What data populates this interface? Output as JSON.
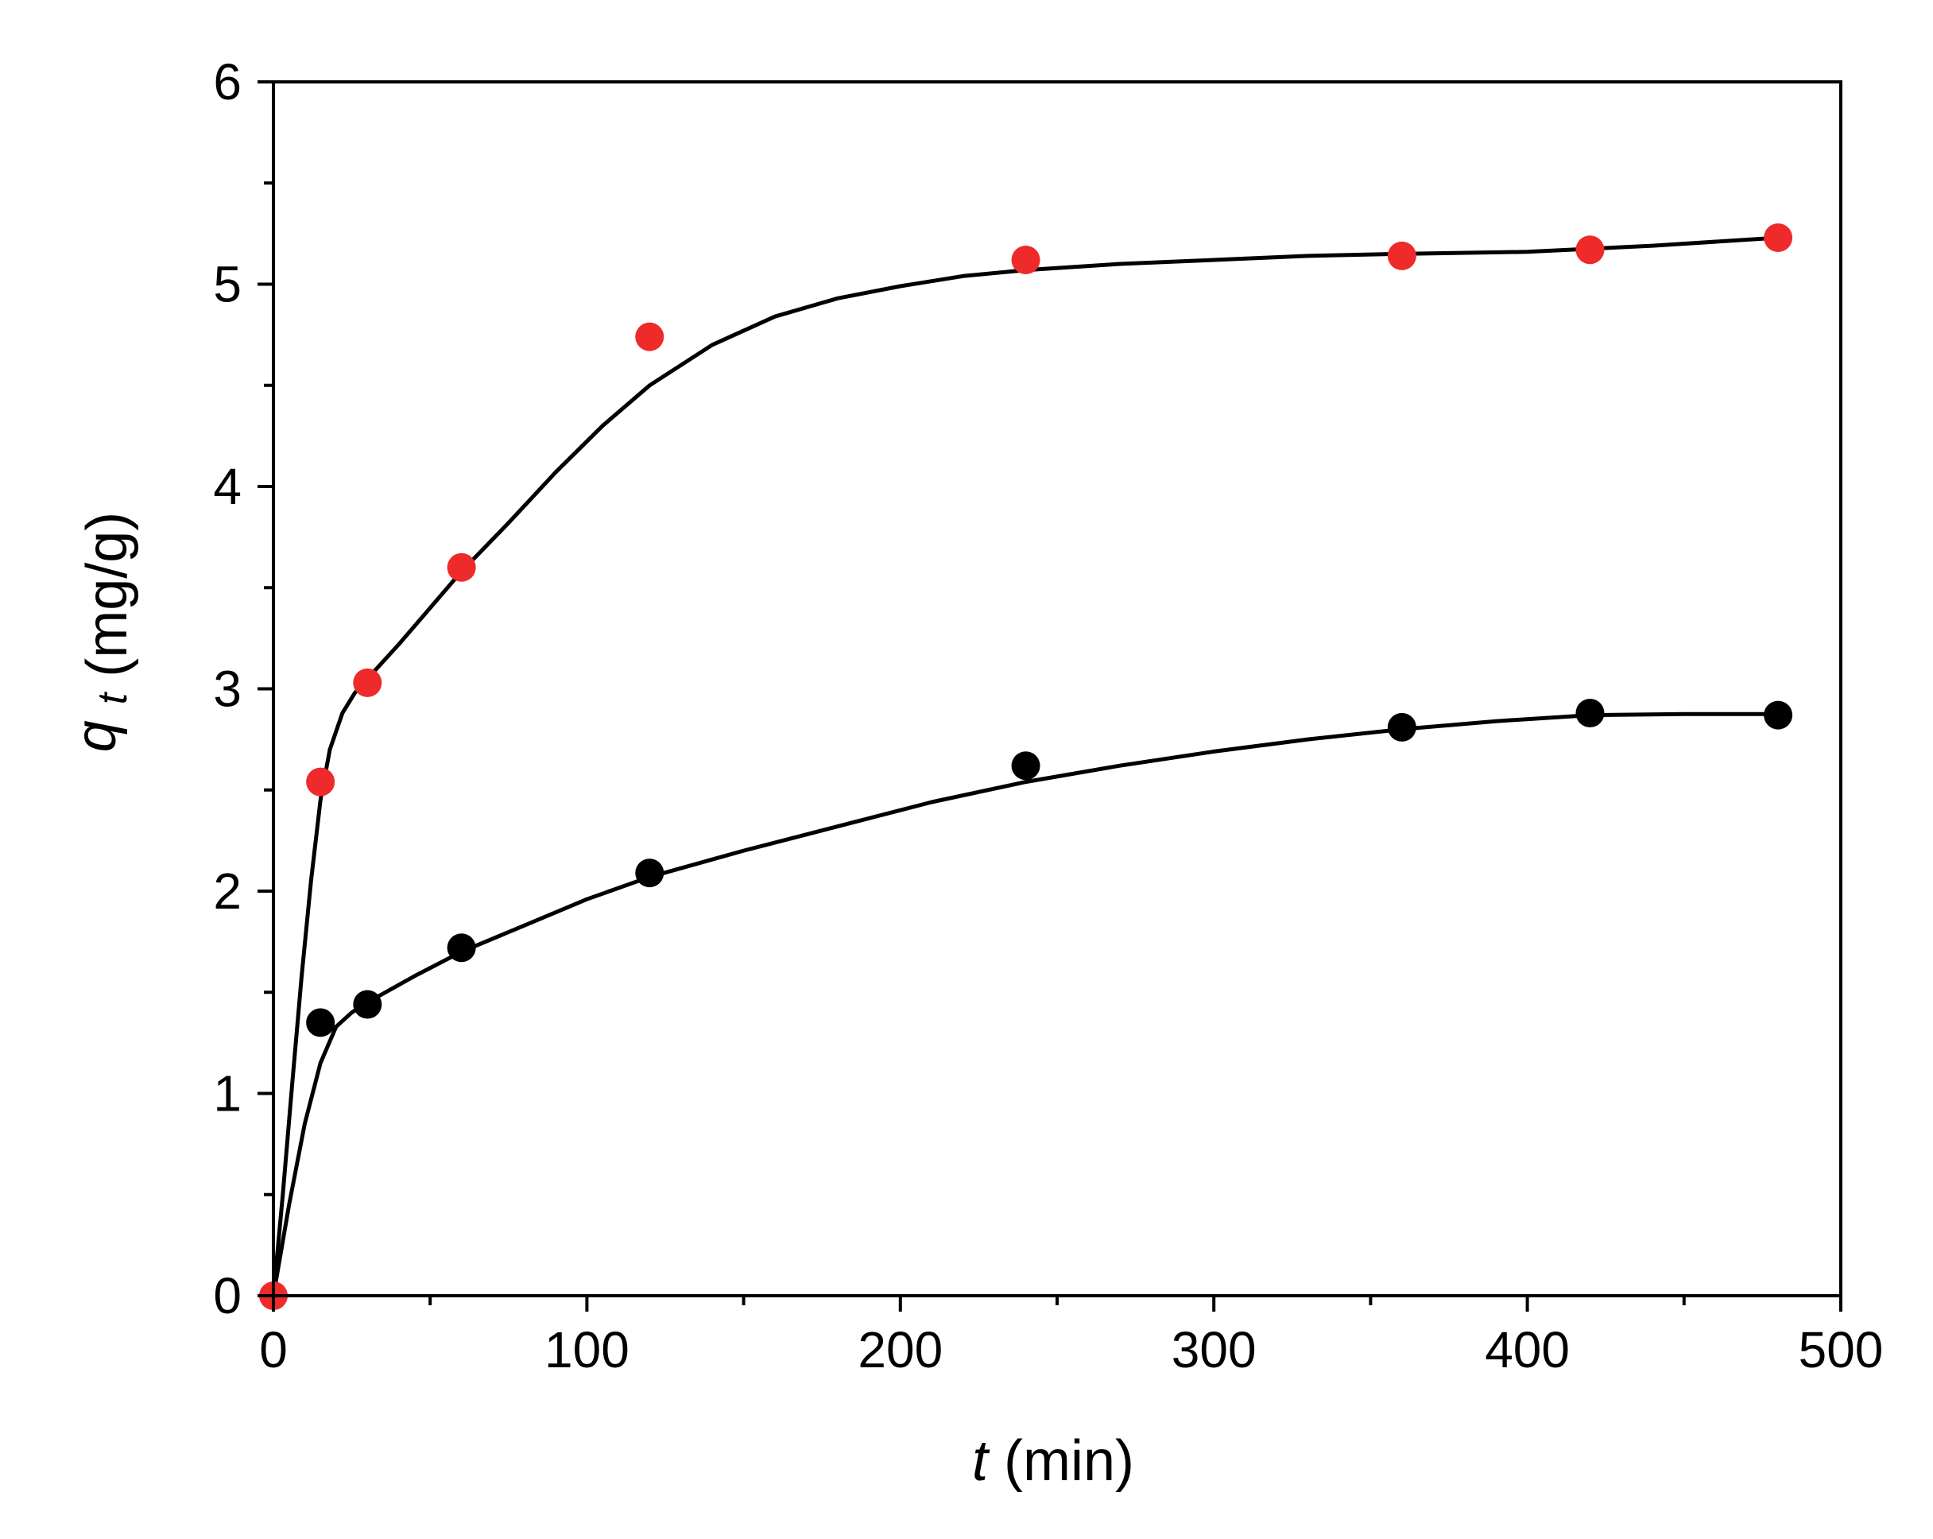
{
  "chart_data": {
    "type": "scatter",
    "xlabel": {
      "symbol": "t",
      "unit": "(min)"
    },
    "ylabel": {
      "symbol": "q",
      "subscript": "t",
      "unit": "(mg/g)"
    },
    "xlim": [
      0,
      500
    ],
    "ylim": [
      0,
      6
    ],
    "x_ticks": [
      0,
      100,
      200,
      300,
      400,
      500
    ],
    "y_ticks": [
      0,
      1,
      2,
      3,
      4,
      5,
      6
    ],
    "x_tick_labels": [
      "0",
      "100",
      "200",
      "300",
      "400",
      "500"
    ],
    "y_tick_labels": [
      "0",
      "1",
      "2",
      "3",
      "4",
      "5",
      "6"
    ],
    "grid": false,
    "series": [
      {
        "color": "#ee2a2a",
        "marker": "circle",
        "points": [
          [
            0,
            0
          ],
          [
            15,
            2.54
          ],
          [
            30,
            3.03
          ],
          [
            60,
            3.6
          ],
          [
            120,
            4.74
          ],
          [
            240,
            5.12
          ],
          [
            360,
            5.14
          ],
          [
            420,
            5.17
          ],
          [
            480,
            5.23
          ]
        ],
        "fit_curve": [
          [
            0,
            0
          ],
          [
            3,
            0.5
          ],
          [
            6,
            1.05
          ],
          [
            9,
            1.58
          ],
          [
            12,
            2.05
          ],
          [
            15,
            2.45
          ],
          [
            18,
            2.7
          ],
          [
            22,
            2.88
          ],
          [
            26,
            2.98
          ],
          [
            30,
            3.05
          ],
          [
            40,
            3.22
          ],
          [
            50,
            3.4
          ],
          [
            60,
            3.58
          ],
          [
            75,
            3.82
          ],
          [
            90,
            4.07
          ],
          [
            105,
            4.3
          ],
          [
            120,
            4.5
          ],
          [
            140,
            4.7
          ],
          [
            160,
            4.84
          ],
          [
            180,
            4.93
          ],
          [
            200,
            4.99
          ],
          [
            220,
            5.04
          ],
          [
            240,
            5.07
          ],
          [
            270,
            5.1
          ],
          [
            300,
            5.12
          ],
          [
            330,
            5.14
          ],
          [
            360,
            5.15
          ],
          [
            400,
            5.16
          ],
          [
            440,
            5.19
          ],
          [
            480,
            5.23
          ]
        ]
      },
      {
        "color": "#000000",
        "marker": "circle",
        "points": [
          [
            15,
            1.35
          ],
          [
            30,
            1.44
          ],
          [
            60,
            1.72
          ],
          [
            120,
            2.09
          ],
          [
            240,
            2.62
          ],
          [
            360,
            2.81
          ],
          [
            420,
            2.88
          ],
          [
            480,
            2.87
          ]
        ],
        "fit_curve": [
          [
            0,
            0
          ],
          [
            5,
            0.45
          ],
          [
            10,
            0.85
          ],
          [
            15,
            1.15
          ],
          [
            20,
            1.33
          ],
          [
            25,
            1.4
          ],
          [
            30,
            1.45
          ],
          [
            45,
            1.58
          ],
          [
            60,
            1.7
          ],
          [
            80,
            1.83
          ],
          [
            100,
            1.96
          ],
          [
            120,
            2.07
          ],
          [
            150,
            2.2
          ],
          [
            180,
            2.32
          ],
          [
            210,
            2.44
          ],
          [
            240,
            2.54
          ],
          [
            270,
            2.62
          ],
          [
            300,
            2.69
          ],
          [
            330,
            2.75
          ],
          [
            360,
            2.8
          ],
          [
            390,
            2.84
          ],
          [
            420,
            2.87
          ],
          [
            450,
            2.875
          ],
          [
            480,
            2.875
          ]
        ]
      }
    ]
  }
}
